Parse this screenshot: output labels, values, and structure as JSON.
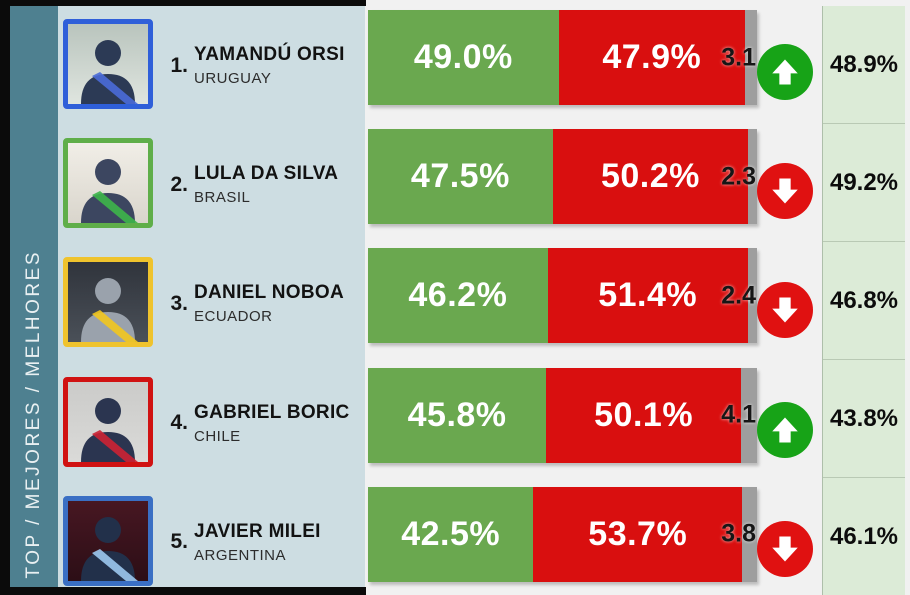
{
  "sidebar": {
    "vertical_label": "TOP / MEJORES / MELHORES"
  },
  "colors": {
    "bars_bg": "#f1f1f1",
    "sidebar_teal": "#4e8090",
    "panel_blue": "#cddde2",
    "approve_bar": "#6aa84f",
    "disapprove_bar": "#d90f0f",
    "undecided_bar": "#9e9e9e",
    "trend_up_circle": "#17a317",
    "trend_down_circle": "#e01111",
    "right_column_green": "#dcebd7"
  },
  "rows": [
    {
      "rank": "1.",
      "name": "YAMANDÚ ORSI",
      "country": "URUGUAY",
      "approve_label": "49.0%",
      "approve_value": 49.0,
      "disapprove_label": "47.9%",
      "disapprove_value": 47.9,
      "undecided_label": "3.1",
      "undecided_value": 3.1,
      "trend": "up",
      "previous_label": "48.9%",
      "photo": {
        "border": "#2f5fd9",
        "bg_top": "#b9c4bd",
        "bg_bottom": "#dfe5df",
        "person": "#2c3a55",
        "sash": "#4a6bd8"
      }
    },
    {
      "rank": "2.",
      "name": "LULA DA SILVA",
      "country": "BRASIL",
      "approve_label": "47.5%",
      "approve_value": 47.5,
      "disapprove_label": "50.2%",
      "disapprove_value": 50.2,
      "undecided_label": "2.3",
      "undecided_value": 2.3,
      "trend": "down",
      "previous_label": "49.2%",
      "photo": {
        "border": "#5fae49",
        "bg_top": "#f1eee7",
        "bg_bottom": "#d9d5cc",
        "person": "#3c4660",
        "sash": "#3db54a"
      }
    },
    {
      "rank": "3.",
      "name": "DANIEL NOBOA",
      "country": "ECUADOR",
      "approve_label": "46.2%",
      "approve_value": 46.2,
      "disapprove_label": "51.4%",
      "disapprove_value": 51.4,
      "undecided_label": "2.4",
      "undecided_value": 2.4,
      "trend": "down",
      "previous_label": "46.8%",
      "photo": {
        "border": "#efc32d",
        "bg_top": "#30343c",
        "bg_bottom": "#4a5058",
        "person": "#9aa2ac",
        "sash": "#f2c61e"
      }
    },
    {
      "rank": "4.",
      "name": "GABRIEL BORIC",
      "country": "CHILE",
      "approve_label": "45.8%",
      "approve_value": 45.8,
      "disapprove_label": "50.1%",
      "disapprove_value": 50.1,
      "undecided_label": "4.1",
      "undecided_value": 4.1,
      "trend": "up",
      "previous_label": "43.8%",
      "photo": {
        "border": "#d01212",
        "bg_top": "#cbcbc9",
        "bg_bottom": "#dadad8",
        "person": "#2b3550",
        "sash": "#cc2233"
      }
    },
    {
      "rank": "5.",
      "name": "JAVIER MILEI",
      "country": "ARGENTINA",
      "approve_label": "42.5%",
      "approve_value": 42.5,
      "disapprove_label": "53.7%",
      "disapprove_value": 53.7,
      "undecided_label": "3.8",
      "undecided_value": 3.8,
      "trend": "down",
      "previous_label": "46.1%",
      "photo": {
        "border": "#3a6fc4",
        "bg_top": "#471722",
        "bg_bottom": "#2c0e16",
        "person": "#22304a",
        "sash": "#9cc8ee"
      }
    }
  ],
  "chart_data": {
    "type": "bar",
    "subtype": "horizontal-stacked-ranking",
    "categories": [
      "Yamandú Orsi (Uruguay)",
      "Lula da Silva (Brasil)",
      "Daniel Noboa (Ecuador)",
      "Gabriel Boric (Chile)",
      "Javier Milei (Argentina)"
    ],
    "series": [
      {
        "name": "approval_pct",
        "values": [
          49.0,
          47.5,
          46.2,
          45.8,
          42.5
        ]
      },
      {
        "name": "disapproval_pct",
        "values": [
          47.9,
          50.2,
          51.4,
          50.1,
          53.7
        ]
      },
      {
        "name": "undecided_pct",
        "values": [
          3.1,
          2.3,
          2.4,
          4.1,
          3.8
        ]
      },
      {
        "name": "previous_approval_pct",
        "values": [
          48.9,
          49.2,
          46.8,
          43.8,
          46.1
        ]
      }
    ],
    "trend_direction": [
      "up",
      "down",
      "down",
      "up",
      "down"
    ],
    "title": "TOP / MEJORES / MELHORES",
    "xlabel": "",
    "ylabel": "",
    "xlim": [
      0,
      100
    ],
    "legend": "none",
    "grid": false
  }
}
